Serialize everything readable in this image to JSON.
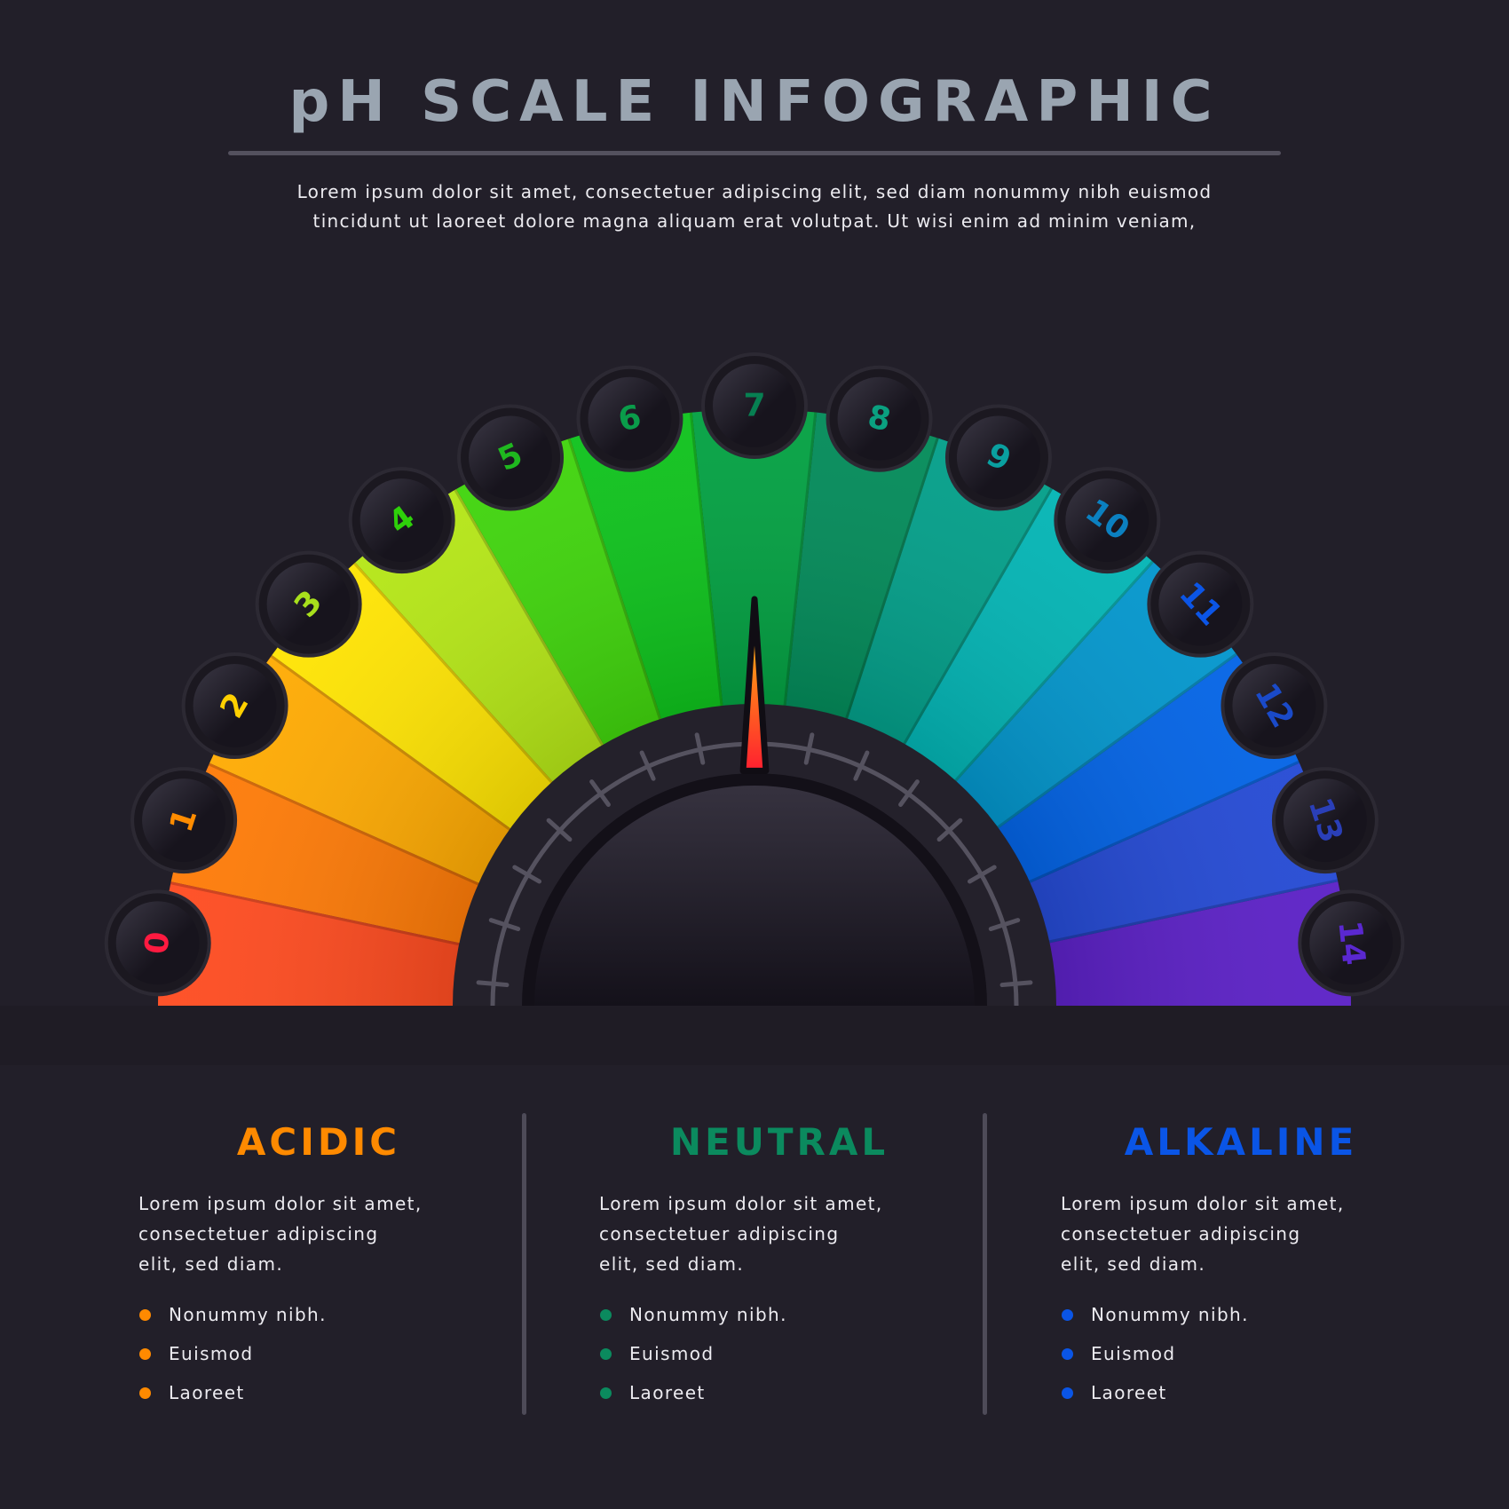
{
  "header": {
    "title": "pH SCALE INFOGRAPHIC",
    "subtitle_lines": [
      "Lorem ipsum dolor sit amet, consectetuer adipiscing elit, sed diam nonummy nibh euismod",
      "tincidunt ut laoreet dolore magna aliquam erat volutpat. Ut wisi enim ad minim veniam,"
    ]
  },
  "gauge": {
    "needle_value": 7,
    "scale": [
      {
        "label": "0",
        "fill": "#ff4a1e",
        "text": "#ff1a40"
      },
      {
        "label": "1",
        "fill": "#ff7a05",
        "text": "#ff8c00"
      },
      {
        "label": "2",
        "fill": "#ffaa00",
        "text": "#ffd000"
      },
      {
        "label": "3",
        "fill": "#ffe400",
        "text": "#a8e01c"
      },
      {
        "label": "4",
        "fill": "#b4e614",
        "text": "#2ed10a"
      },
      {
        "label": "5",
        "fill": "#3ed40a",
        "text": "#1fb81f"
      },
      {
        "label": "6",
        "fill": "#0cc21a",
        "text": "#0a9c4a"
      },
      {
        "label": "7",
        "fill": "#00a040",
        "text": "#078052"
      },
      {
        "label": "8",
        "fill": "#008a58",
        "text": "#0aa080"
      },
      {
        "label": "9",
        "fill": "#009e88",
        "text": "#0aa0a0"
      },
      {
        "label": "10",
        "fill": "#00b4b4",
        "text": "#0b80c0"
      },
      {
        "label": "11",
        "fill": "#0095cc",
        "text": "#0b55e6"
      },
      {
        "label": "12",
        "fill": "#0062e6",
        "text": "#1a4ac8"
      },
      {
        "label": "13",
        "fill": "#2248d4",
        "text": "#2a3fb8"
      },
      {
        "label": "14",
        "fill": "#5a1ec6",
        "text": "#5a28d0"
      }
    ]
  },
  "columns": [
    {
      "title": "ACIDIC",
      "color": "#ff8a00",
      "body": [
        "Lorem ipsum dolor sit amet,",
        "consectetuer adipiscing",
        "elit, sed diam."
      ],
      "bullets": [
        "Nonummy nibh.",
        "Euismod",
        "Laoreet"
      ]
    },
    {
      "title": "NEUTRAL",
      "color": "#0b8a5e",
      "body": [
        "Lorem ipsum dolor sit amet,",
        "consectetuer adipiscing",
        "elit, sed diam."
      ],
      "bullets": [
        "Nonummy nibh.",
        "Euismod",
        "Laoreet"
      ]
    },
    {
      "title": "ALKALINE",
      "color": "#0a55e6",
      "body": [
        "Lorem ipsum dolor sit amet,",
        "consectetuer adipiscing",
        "elit, sed diam."
      ],
      "bullets": [
        "Nonummy nibh.",
        "Euismod",
        "Laoreet"
      ]
    }
  ]
}
